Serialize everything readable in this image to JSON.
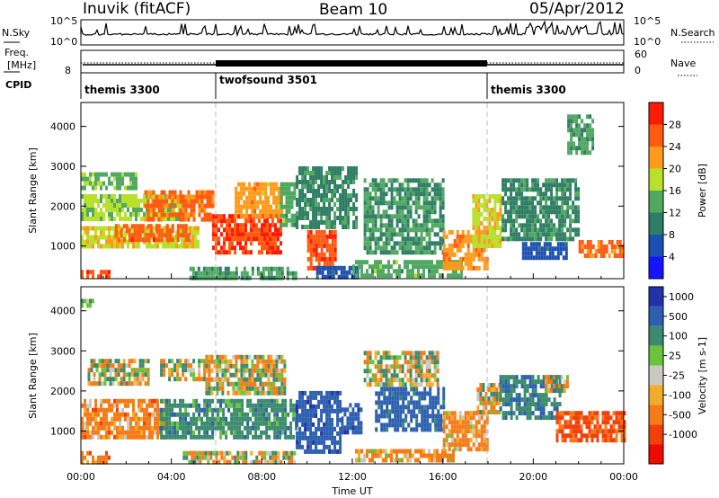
{
  "header": {
    "station": "Inuvik (fitACF)",
    "beam": "Beam 10",
    "date": "05/Apr/2012"
  },
  "top_panels": {
    "nsky_label": "N.Sky",
    "nsky_ticks": [
      "10^5",
      "10^0"
    ],
    "nsearch_label": "N.Search",
    "freq_label": "Freq.",
    "freq_unit": "[MHz]",
    "freq_ticks": [
      "8"
    ],
    "nave_label": "Nave",
    "nave_ticks": [
      "60",
      "0"
    ],
    "cpid_label": "CPID",
    "modes": [
      {
        "name": "themis 3300",
        "start_hour": 0
      },
      {
        "name": "twofsound 3501",
        "start_hour": 6
      },
      {
        "name": "themis 3300",
        "start_hour": 18
      }
    ]
  },
  "chart_data": [
    {
      "type": "heatmap",
      "name": "power-panel",
      "x": {
        "label": "Time UT",
        "range_hours": [
          0,
          24
        ],
        "tick_labels": [
          "00:00",
          "04:00",
          "08:00",
          "12:00",
          "16:00",
          "20:00",
          "00:00"
        ]
      },
      "y": {
        "label": "Slant Range [km]",
        "range": [
          180,
          4600
        ],
        "tick_labels": [
          "1000",
          "2000",
          "3000",
          "4000"
        ],
        "tick_values": [
          1000,
          2000,
          3000,
          4000
        ]
      },
      "colorbar": {
        "label": "Power [dB]",
        "tick_labels": [
          "4",
          "8",
          "12",
          "16",
          "20",
          "24",
          "28"
        ],
        "bins": [
          {
            "from": 0,
            "to": 4,
            "color": "#1414ff"
          },
          {
            "from": 4,
            "to": 8,
            "color": "#1c4fb2"
          },
          {
            "from": 8,
            "to": 12,
            "color": "#2f7d65"
          },
          {
            "from": 12,
            "to": 16,
            "color": "#50a861"
          },
          {
            "from": 16,
            "to": 20,
            "color": "#b9e02c"
          },
          {
            "from": 20,
            "to": 24,
            "color": "#ff9a1a"
          },
          {
            "from": 24,
            "to": 28,
            "color": "#ff5a10"
          },
          {
            "from": 28,
            "to": 32,
            "color": "#ff1a05"
          }
        ]
      },
      "regions": [
        {
          "t": [
            0.0,
            1.2
          ],
          "r": [
            200,
            400
          ],
          "v": 27
        },
        {
          "t": [
            0.0,
            5.2
          ],
          "r": [
            1000,
            1500
          ],
          "v": 19
        },
        {
          "t": [
            0.0,
            4.5
          ],
          "r": [
            1700,
            2300
          ],
          "v": 17
        },
        {
          "t": [
            0.0,
            2.5
          ],
          "r": [
            2500,
            2850
          ],
          "v": 15
        },
        {
          "t": [
            1.5,
            4.8
          ],
          "r": [
            1100,
            1550
          ],
          "v": 26
        },
        {
          "t": [
            2.8,
            5.8
          ],
          "r": [
            1650,
            2400
          ],
          "v": 25
        },
        {
          "t": [
            5.8,
            8.8
          ],
          "r": [
            800,
            1800
          ],
          "v": 28
        },
        {
          "t": [
            6.8,
            8.9
          ],
          "r": [
            1800,
            2600
          ],
          "v": 22
        },
        {
          "t": [
            4.8,
            9.5
          ],
          "r": [
            200,
            480
          ],
          "v": 13
        },
        {
          "t": [
            8.8,
            9.4
          ],
          "r": [
            1500,
            2600
          ],
          "v": 14
        },
        {
          "t": [
            10.0,
            11.2
          ],
          "r": [
            400,
            1400
          ],
          "v": 27
        },
        {
          "t": [
            9.5,
            12.2
          ],
          "r": [
            1500,
            3000
          ],
          "v": 11
        },
        {
          "t": [
            10.4,
            12.2
          ],
          "r": [
            200,
            500
          ],
          "v": 6
        },
        {
          "t": [
            12.0,
            16.8
          ],
          "r": [
            200,
            650
          ],
          "v": 14
        },
        {
          "t": [
            12.5,
            16.0
          ],
          "r": [
            800,
            2700
          ],
          "v": 12
        },
        {
          "t": [
            16.0,
            18.0
          ],
          "r": [
            400,
            1400
          ],
          "v": 23
        },
        {
          "t": [
            17.3,
            18.6
          ],
          "r": [
            1000,
            2300
          ],
          "v": 19
        },
        {
          "t": [
            18.6,
            22.0
          ],
          "r": [
            1200,
            2700
          ],
          "v": 11
        },
        {
          "t": [
            22.0,
            24.0
          ],
          "r": [
            800,
            1150
          ],
          "v": 25
        },
        {
          "t": [
            19.5,
            21.5
          ],
          "r": [
            700,
            1100
          ],
          "v": 6
        },
        {
          "t": [
            21.5,
            22.6
          ],
          "r": [
            3300,
            4300
          ],
          "v": 13
        }
      ]
    },
    {
      "type": "heatmap",
      "name": "velocity-panel",
      "x": {
        "label": "Time UT",
        "range_hours": [
          0,
          24
        ],
        "tick_labels": [
          "00:00",
          "04:00",
          "08:00",
          "12:00",
          "16:00",
          "20:00",
          "00:00"
        ]
      },
      "y": {
        "label": "Slant Range [km]",
        "range": [
          180,
          4600
        ],
        "tick_labels": [
          "1000",
          "2000",
          "3000",
          "4000"
        ],
        "tick_values": [
          1000,
          2000,
          3000,
          4000
        ]
      },
      "colorbar": {
        "label": "Velocity [m s-1]",
        "tick_labels": [
          "1000",
          "500",
          "100",
          "25",
          "-25",
          "-100",
          "-500",
          "-1000"
        ],
        "bins": [
          {
            "from": 1000,
            "to": 1500,
            "color": "#2233aa"
          },
          {
            "from": 500,
            "to": 1000,
            "color": "#2c5fb0"
          },
          {
            "from": 100,
            "to": 500,
            "color": "#3b8a6c"
          },
          {
            "from": 25,
            "to": 100,
            "color": "#69c43b"
          },
          {
            "from": -25,
            "to": 25,
            "color": "#c9c9c2"
          },
          {
            "from": -100,
            "to": -25,
            "color": "#f3ac2a"
          },
          {
            "from": -500,
            "to": -100,
            "color": "#f57a18"
          },
          {
            "from": -1000,
            "to": -500,
            "color": "#f2400c"
          },
          {
            "from": -1500,
            "to": -1000,
            "color": "#ee0a00"
          }
        ]
      },
      "regions": [
        {
          "t": [
            0.0,
            1.2
          ],
          "r": [
            200,
            500
          ],
          "v": -300
        },
        {
          "t": [
            0.0,
            3.8
          ],
          "r": [
            900,
            1800
          ],
          "v": -250
        },
        {
          "t": [
            0.3,
            3.0
          ],
          "r": [
            2200,
            2800
          ],
          "v": 0
        },
        {
          "t": [
            3.5,
            5.5
          ],
          "r": [
            2300,
            2800
          ],
          "v": 0
        },
        {
          "t": [
            3.5,
            9.5
          ],
          "r": [
            900,
            1800
          ],
          "v": 300
        },
        {
          "t": [
            5.5,
            9.0
          ],
          "r": [
            1900,
            2900
          ],
          "v": 0
        },
        {
          "t": [
            4.5,
            9.5
          ],
          "r": [
            200,
            500
          ],
          "v": 0
        },
        {
          "t": [
            9.5,
            11.5
          ],
          "r": [
            500,
            2000
          ],
          "v": 800
        },
        {
          "t": [
            11.5,
            12.4
          ],
          "r": [
            1000,
            1700
          ],
          "v": 800
        },
        {
          "t": [
            12.0,
            16.5
          ],
          "r": [
            250,
            550
          ],
          "v": -200
        },
        {
          "t": [
            12.5,
            15.8
          ],
          "r": [
            2200,
            3000
          ],
          "v": 0
        },
        {
          "t": [
            13.0,
            16.0
          ],
          "r": [
            1000,
            2100
          ],
          "v": 700
        },
        {
          "t": [
            16.0,
            18.0
          ],
          "r": [
            500,
            1500
          ],
          "v": -200
        },
        {
          "t": [
            17.5,
            18.5
          ],
          "r": [
            1500,
            2200
          ],
          "v": -60
        },
        {
          "t": [
            18.5,
            21.2
          ],
          "r": [
            1300,
            2400
          ],
          "v": 400
        },
        {
          "t": [
            21.0,
            24.0
          ],
          "r": [
            800,
            1500
          ],
          "v": -600
        },
        {
          "t": [
            20.5,
            21.5
          ],
          "r": [
            2000,
            2400
          ],
          "v": 0
        },
        {
          "t": [
            0.0,
            0.5
          ],
          "r": [
            4100,
            4300
          ],
          "v": 0
        }
      ]
    }
  ]
}
